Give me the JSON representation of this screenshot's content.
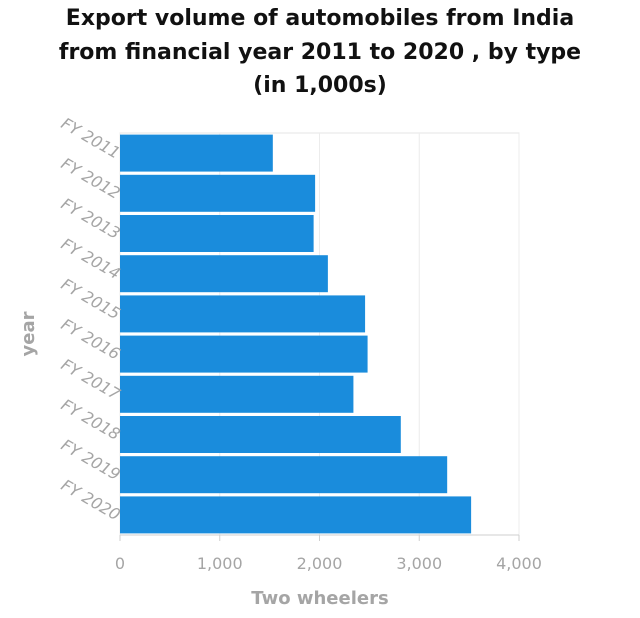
{
  "chart_data": {
    "type": "bar",
    "orientation": "horizontal",
    "title_lines": [
      "Export volume of automobiles from India",
      "from financial year 2011 to 2020 , by type",
      "(in 1,000s)"
    ],
    "xlabel": "Two wheelers",
    "ylabel": "year",
    "categories": [
      "FY 2011",
      "FY 2012",
      "FY 2013",
      "FY 2014",
      "FY 2015",
      "FY 2016",
      "FY 2017",
      "FY 2018",
      "FY 2019",
      "FY 2020"
    ],
    "values": [
      1532,
      1956,
      1941,
      2084,
      2457,
      2482,
      2340,
      2815,
      3280,
      3520
    ],
    "xlim": [
      0,
      4000
    ],
    "xticks": [
      0,
      1000,
      2000,
      3000,
      4000
    ],
    "xtick_labels": [
      "0",
      "1,000",
      "2,000",
      "3,000",
      "4,000"
    ],
    "grid": true,
    "bar_color": "#1a8cdc"
  }
}
